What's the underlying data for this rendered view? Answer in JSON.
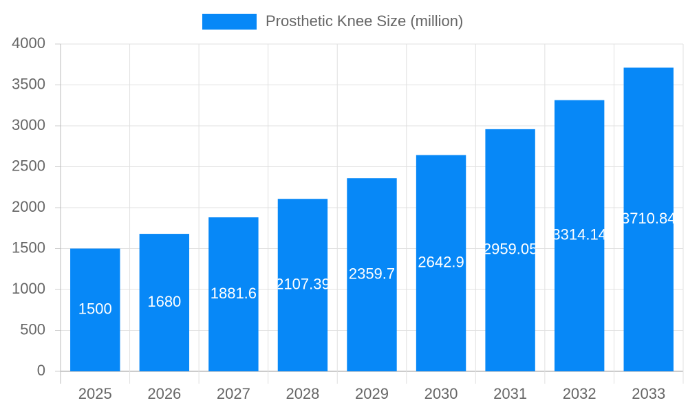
{
  "chart_data": {
    "type": "bar",
    "series": [
      {
        "name": "Prosthetic Knee Size (million)",
        "color": "#0788f7",
        "values": [
          1500,
          1680,
          1881.6,
          2107.39,
          2359.7,
          2642.9,
          2959.05,
          3314.14,
          3710.84
        ]
      }
    ],
    "categories": [
      "2025",
      "2026",
      "2027",
      "2028",
      "2029",
      "2030",
      "2031",
      "2032",
      "2033"
    ],
    "ylim": [
      0,
      4000
    ],
    "yticks": [
      0,
      500,
      1000,
      1500,
      2000,
      2500,
      3000,
      3500,
      4000
    ],
    "grid": true,
    "legend": "top"
  }
}
